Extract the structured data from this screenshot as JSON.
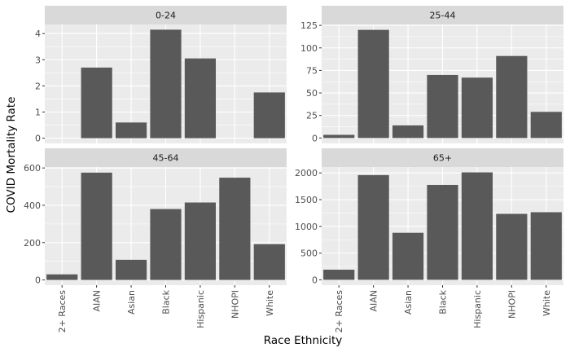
{
  "chart_data": {
    "type": "bar",
    "xlabel": "Race Ethnicity",
    "ylabel": "COVID Mortality Rate",
    "categories": [
      "2+ Races",
      "AIAN",
      "Asian",
      "Black",
      "Hispanic",
      "NHOPI",
      "White"
    ],
    "panels": [
      {
        "facet": "0-24",
        "values": [
          null,
          2.7,
          0.6,
          4.15,
          3.05,
          null,
          1.75
        ],
        "ylim": [
          -0.2,
          4.35
        ],
        "yticks": [
          0,
          1,
          2,
          3,
          4
        ],
        "ytick_labels": [
          "0",
          "1",
          "2",
          "3",
          "4"
        ]
      },
      {
        "facet": "25-44",
        "values": [
          3.5,
          120,
          14,
          70,
          67,
          91,
          29
        ],
        "ylim": [
          -6,
          126
        ],
        "yticks": [
          0,
          25,
          50,
          75,
          100,
          125
        ],
        "ytick_labels": [
          "0",
          "25",
          "50",
          "75",
          "100",
          "125"
        ]
      },
      {
        "facet": "45-64",
        "values": [
          30,
          575,
          108,
          380,
          415,
          548,
          192
        ],
        "ylim": [
          -28,
          605
        ],
        "yticks": [
          0,
          200,
          400,
          600
        ],
        "ytick_labels": [
          "0",
          "200",
          "400",
          "600"
        ]
      },
      {
        "facet": "65+",
        "values": [
          190,
          1960,
          880,
          1775,
          2010,
          1235,
          1265
        ],
        "ylim": [
          -100,
          2110
        ],
        "yticks": [
          0,
          500,
          1000,
          1500,
          2000
        ],
        "ytick_labels": [
          "0",
          "500",
          "1000",
          "1500",
          "2000"
        ]
      }
    ],
    "grid": true,
    "legend": "none"
  },
  "colors": {
    "bar": "#595959",
    "panel_background": "#ebebeb",
    "strip_background": "#d9d9d9",
    "grid": "#ffffff"
  }
}
